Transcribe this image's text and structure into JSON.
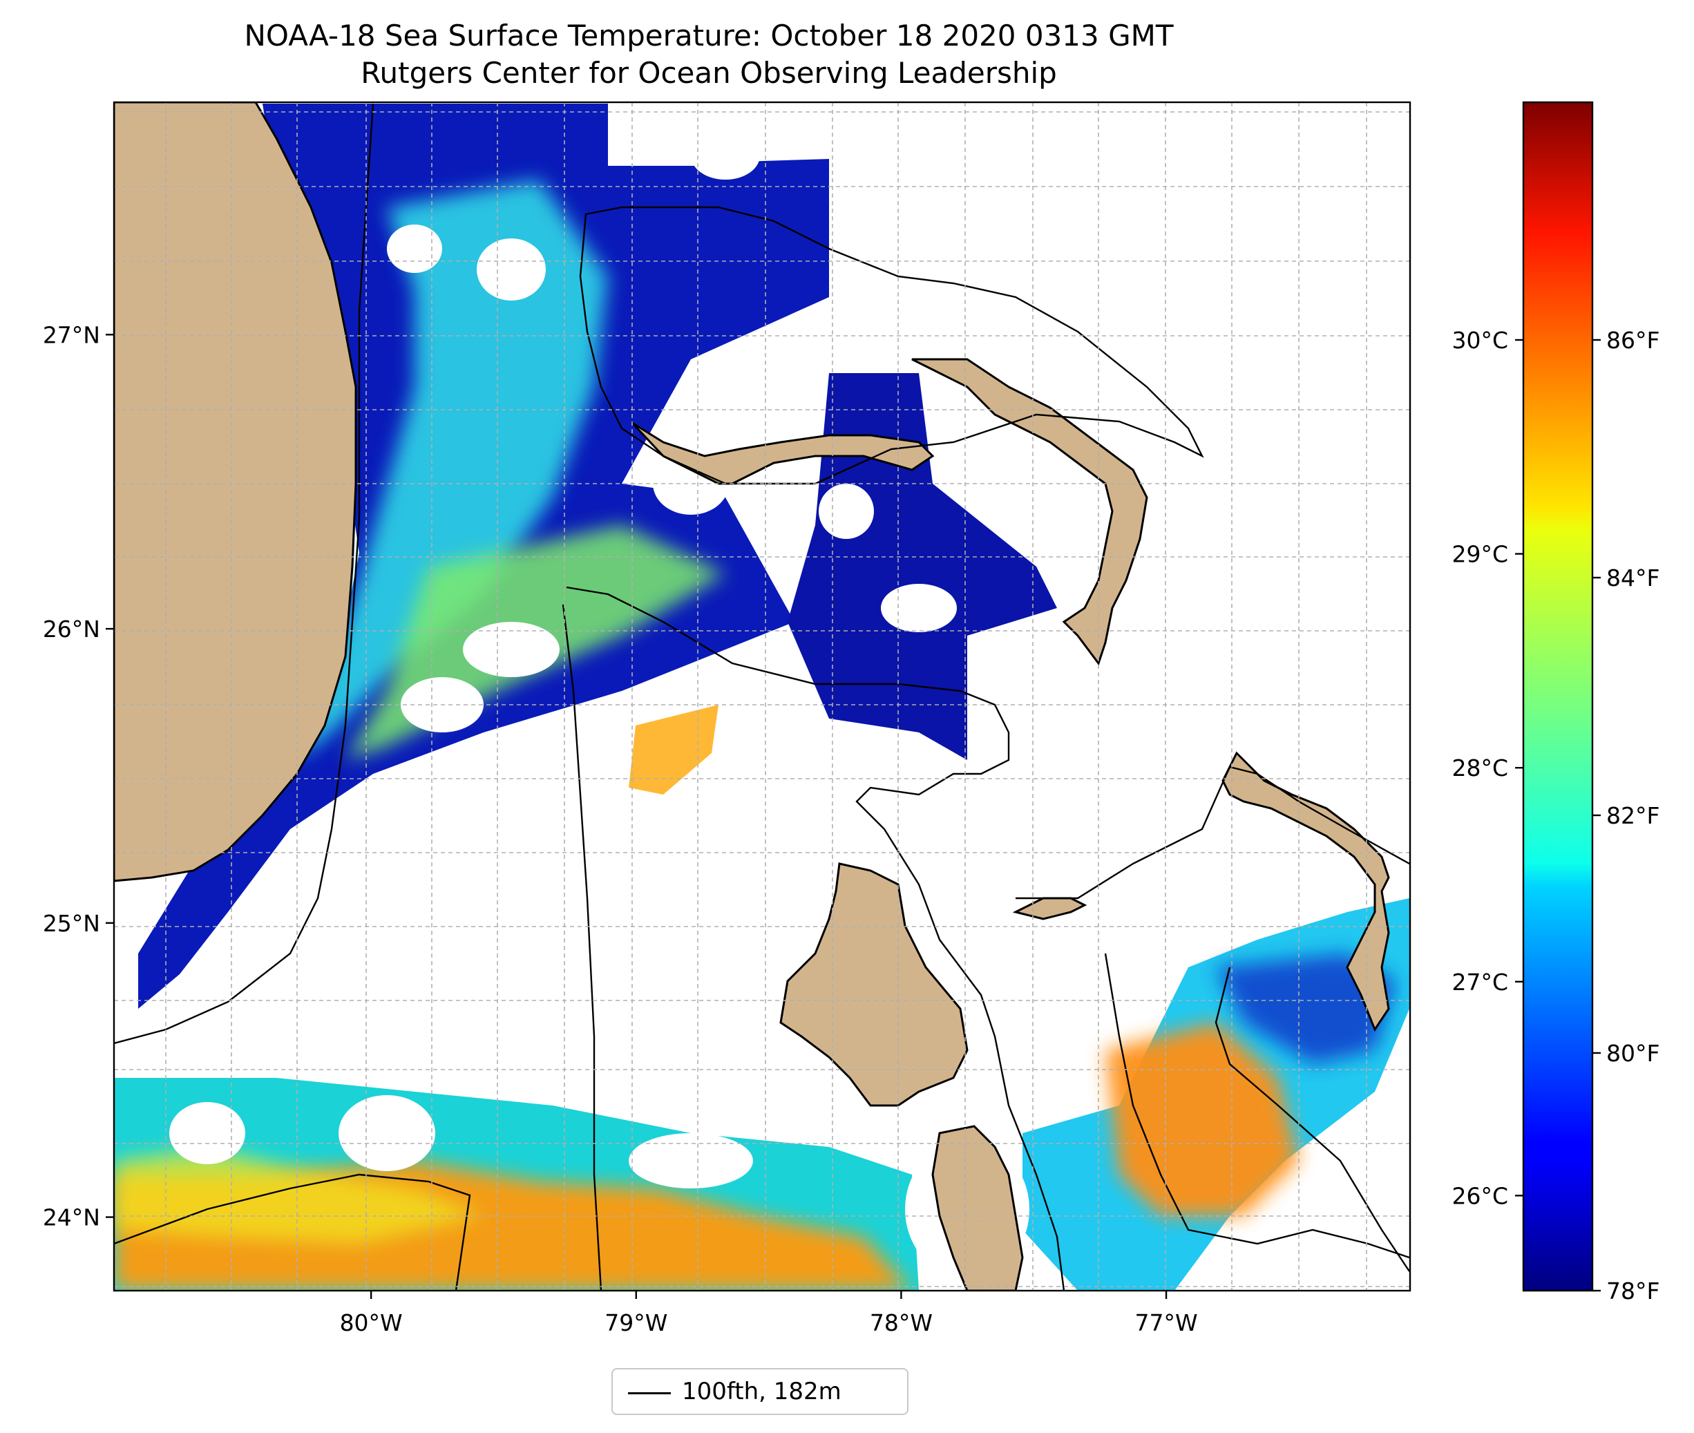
{
  "title": "NOAA-18 Sea Surface Temperature: October 18 2020 0313 GMT",
  "subtitle": "Rutgers Center for Ocean Observing Leadership",
  "map": {
    "lon_ticks": [
      {
        "value": -80,
        "label": "80°W"
      },
      {
        "value": -79,
        "label": "79°W"
      },
      {
        "value": -78,
        "label": "78°W"
      },
      {
        "value": -77,
        "label": "77°W"
      }
    ],
    "lat_ticks": [
      {
        "value": 27,
        "label": "27°N"
      },
      {
        "value": 26,
        "label": "26°N"
      },
      {
        "value": 25,
        "label": "25°N"
      },
      {
        "value": 24,
        "label": "24°N"
      }
    ],
    "lon_range": [
      -80.97,
      -76.08
    ],
    "lat_range": [
      23.75,
      27.79
    ],
    "gridlines": true,
    "land_color": "#d2b48c"
  },
  "colorbar": {
    "colormap": "jet",
    "celsius_ticks": [
      {
        "value": 30,
        "label": "30°C"
      },
      {
        "value": 29,
        "label": "29°C"
      },
      {
        "value": 28,
        "label": "28°C"
      },
      {
        "value": 27,
        "label": "27°C"
      },
      {
        "value": 26,
        "label": "26°C"
      }
    ],
    "fahrenheit_ticks": [
      {
        "value": 86,
        "label": "86°F"
      },
      {
        "value": 84,
        "label": "84°F"
      },
      {
        "value": 82,
        "label": "82°F"
      },
      {
        "value": 80,
        "label": "80°F"
      },
      {
        "value": 78,
        "label": "78°F"
      }
    ],
    "range_f": [
      78,
      88
    ]
  },
  "legend": {
    "label": "100fth, 182m",
    "placement": "bottom-center"
  }
}
